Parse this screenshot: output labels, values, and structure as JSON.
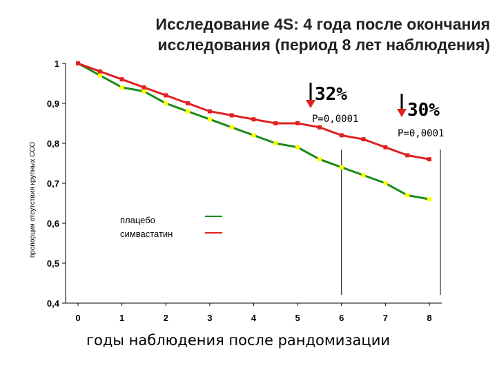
{
  "chart_data": {
    "type": "line",
    "title_line1": "Исследование 4S: 4 года после окончания",
    "title_line2": "исследования (период 8 лет наблюдения)",
    "xlabel": "годы наблюдения после рандомизации",
    "ylabel": "пропорция отсутствия крупных ССО",
    "xlim": [
      0,
      8
    ],
    "ylim": [
      0.4,
      1.0
    ],
    "x_ticks": [
      "0",
      "1",
      "2",
      "3",
      "4",
      "5",
      "6",
      "7",
      "8"
    ],
    "y_ticks": [
      "0,4",
      "0,5",
      "0,6",
      "0,7",
      "0,8",
      "0,9",
      "1"
    ],
    "y_tick_values": [
      0.4,
      0.5,
      0.6,
      0.7,
      0.8,
      0.9,
      1.0
    ],
    "grid": false,
    "legend_position": "lower-left",
    "series": [
      {
        "name": "плацебо",
        "color": "#1a8a1a",
        "marker_color": "#ffff00",
        "x": [
          0,
          0.5,
          1,
          1.5,
          2,
          2.5,
          3,
          3.5,
          4,
          4.5,
          5,
          5.5,
          6,
          6.5,
          7,
          7.5,
          8
        ],
        "y": [
          1.0,
          0.97,
          0.94,
          0.93,
          0.9,
          0.88,
          0.86,
          0.84,
          0.82,
          0.8,
          0.79,
          0.76,
          0.74,
          0.72,
          0.7,
          0.67,
          0.66
        ]
      },
      {
        "name": "симвастатин",
        "color": "#e02020",
        "marker_color": "#e02020",
        "x": [
          0,
          0.5,
          1,
          1.5,
          2,
          2.5,
          3,
          3.5,
          4,
          4.5,
          5,
          5.5,
          6,
          6.5,
          7,
          7.5,
          8
        ],
        "y": [
          1.0,
          0.98,
          0.96,
          0.94,
          0.92,
          0.9,
          0.88,
          0.87,
          0.86,
          0.85,
          0.85,
          0.84,
          0.82,
          0.81,
          0.79,
          0.77,
          0.76
        ]
      }
    ],
    "annotations": [
      {
        "label": "32%",
        "pvalue": "P=0,0001",
        "at_year": 6
      },
      {
        "label": "30%",
        "pvalue": "P=0,0001",
        "at_year": 8
      }
    ],
    "arrow_color": "#e02020",
    "arrow_stem_color": "#000000"
  }
}
